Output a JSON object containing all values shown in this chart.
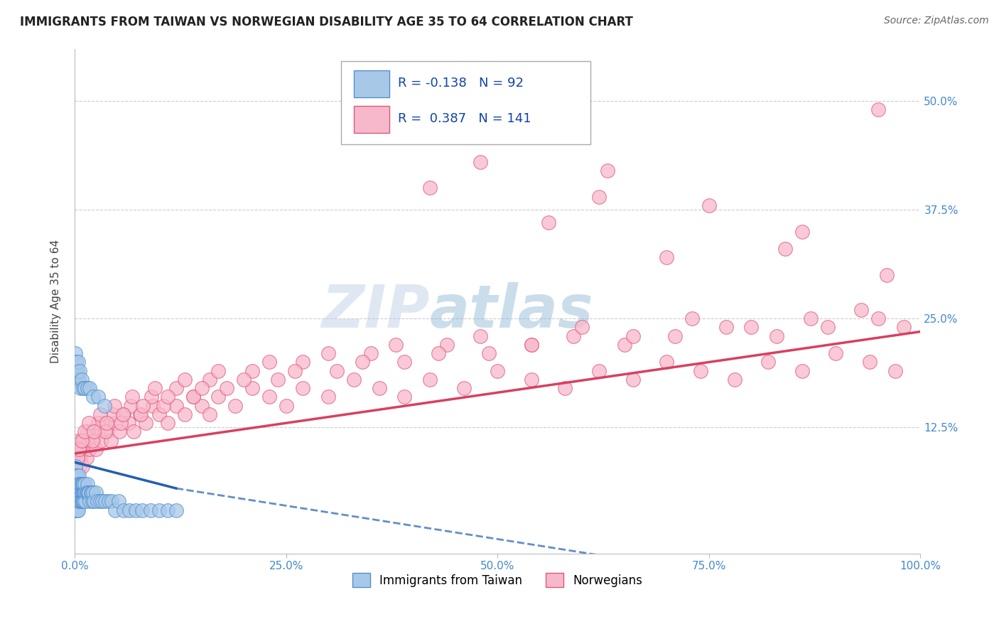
{
  "title": "IMMIGRANTS FROM TAIWAN VS NORWEGIAN DISABILITY AGE 35 TO 64 CORRELATION CHART",
  "source": "Source: ZipAtlas.com",
  "ylabel": "Disability Age 35 to 64",
  "xmin": 0.0,
  "xmax": 1.0,
  "ymin": -0.02,
  "ymax": 0.56,
  "xticks": [
    0.0,
    0.25,
    0.5,
    0.75,
    1.0
  ],
  "xticklabels": [
    "0.0%",
    "25.0%",
    "50.0%",
    "75.0%",
    "100.0%"
  ],
  "ytick_positions": [
    0.125,
    0.25,
    0.375,
    0.5
  ],
  "yticklabels": [
    "12.5%",
    "25.0%",
    "37.5%",
    "50.0%"
  ],
  "taiwan_color": "#a8c8e8",
  "taiwan_edge_color": "#5090d0",
  "norwegian_color": "#f8b8cc",
  "norwegian_edge_color": "#e05878",
  "taiwan_line_color": "#2060b0",
  "norwegian_line_color": "#d84060",
  "R_taiwan": -0.138,
  "N_taiwan": 92,
  "R_norwegian": 0.387,
  "N_norwegian": 141,
  "legend_label_taiwan": "Immigrants from Taiwan",
  "legend_label_norwegian": "Norwegians",
  "watermark_zip": "ZIP",
  "watermark_atlas": "atlas",
  "grid_color": "#cccccc",
  "background_color": "#ffffff",
  "taiwan_points_x": [
    0.001,
    0.001,
    0.001,
    0.001,
    0.001,
    0.001,
    0.001,
    0.002,
    0.002,
    0.002,
    0.002,
    0.002,
    0.002,
    0.003,
    0.003,
    0.003,
    0.003,
    0.003,
    0.004,
    0.004,
    0.004,
    0.004,
    0.005,
    0.005,
    0.005,
    0.005,
    0.006,
    0.006,
    0.006,
    0.007,
    0.007,
    0.007,
    0.008,
    0.008,
    0.008,
    0.009,
    0.009,
    0.009,
    0.01,
    0.01,
    0.01,
    0.011,
    0.011,
    0.012,
    0.012,
    0.013,
    0.013,
    0.014,
    0.015,
    0.015,
    0.016,
    0.017,
    0.018,
    0.019,
    0.02,
    0.021,
    0.022,
    0.023,
    0.025,
    0.027,
    0.03,
    0.033,
    0.036,
    0.04,
    0.044,
    0.048,
    0.052,
    0.058,
    0.065,
    0.072,
    0.08,
    0.09,
    0.1,
    0.11,
    0.12,
    0.001,
    0.001,
    0.002,
    0.002,
    0.003,
    0.004,
    0.005,
    0.006,
    0.007,
    0.008,
    0.01,
    0.012,
    0.015,
    0.018,
    0.022,
    0.028,
    0.035
  ],
  "taiwan_points_y": [
    0.04,
    0.05,
    0.06,
    0.07,
    0.08,
    0.03,
    0.04,
    0.05,
    0.06,
    0.07,
    0.04,
    0.03,
    0.05,
    0.06,
    0.04,
    0.07,
    0.05,
    0.03,
    0.06,
    0.05,
    0.04,
    0.03,
    0.07,
    0.06,
    0.05,
    0.04,
    0.05,
    0.06,
    0.04,
    0.05,
    0.06,
    0.04,
    0.05,
    0.06,
    0.04,
    0.05,
    0.06,
    0.04,
    0.05,
    0.06,
    0.04,
    0.05,
    0.04,
    0.05,
    0.06,
    0.05,
    0.04,
    0.05,
    0.06,
    0.05,
    0.05,
    0.05,
    0.04,
    0.05,
    0.05,
    0.04,
    0.05,
    0.04,
    0.05,
    0.04,
    0.04,
    0.04,
    0.04,
    0.04,
    0.04,
    0.03,
    0.04,
    0.03,
    0.03,
    0.03,
    0.03,
    0.03,
    0.03,
    0.03,
    0.03,
    0.19,
    0.21,
    0.2,
    0.18,
    0.19,
    0.2,
    0.18,
    0.19,
    0.17,
    0.18,
    0.17,
    0.17,
    0.17,
    0.17,
    0.16,
    0.16,
    0.15
  ],
  "norwegian_points_x": [
    0.001,
    0.002,
    0.003,
    0.004,
    0.005,
    0.006,
    0.007,
    0.008,
    0.009,
    0.01,
    0.012,
    0.014,
    0.016,
    0.018,
    0.02,
    0.022,
    0.025,
    0.028,
    0.031,
    0.035,
    0.039,
    0.043,
    0.048,
    0.053,
    0.058,
    0.064,
    0.07,
    0.077,
    0.084,
    0.092,
    0.1,
    0.11,
    0.12,
    0.13,
    0.14,
    0.15,
    0.16,
    0.17,
    0.19,
    0.21,
    0.23,
    0.25,
    0.27,
    0.3,
    0.33,
    0.36,
    0.39,
    0.42,
    0.46,
    0.5,
    0.54,
    0.58,
    0.62,
    0.66,
    0.7,
    0.74,
    0.78,
    0.82,
    0.86,
    0.9,
    0.94,
    0.97,
    0.003,
    0.006,
    0.01,
    0.015,
    0.021,
    0.028,
    0.036,
    0.045,
    0.055,
    0.066,
    0.078,
    0.091,
    0.105,
    0.12,
    0.14,
    0.16,
    0.18,
    0.21,
    0.24,
    0.27,
    0.31,
    0.35,
    0.39,
    0.44,
    0.49,
    0.54,
    0.59,
    0.65,
    0.71,
    0.77,
    0.83,
    0.89,
    0.95,
    0.001,
    0.003,
    0.005,
    0.008,
    0.012,
    0.017,
    0.023,
    0.03,
    0.038,
    0.047,
    0.057,
    0.068,
    0.081,
    0.095,
    0.11,
    0.13,
    0.15,
    0.17,
    0.2,
    0.23,
    0.26,
    0.3,
    0.34,
    0.38,
    0.43,
    0.48,
    0.54,
    0.6,
    0.66,
    0.73,
    0.8,
    0.87,
    0.93,
    0.98,
    0.52,
    0.63,
    0.75,
    0.86,
    0.95,
    0.42,
    0.56,
    0.7,
    0.84,
    0.96,
    0.48,
    0.62
  ],
  "norwegian_points_y": [
    0.08,
    0.1,
    0.09,
    0.11,
    0.1,
    0.08,
    0.09,
    0.1,
    0.08,
    0.11,
    0.1,
    0.09,
    0.11,
    0.1,
    0.12,
    0.11,
    0.1,
    0.12,
    0.11,
    0.13,
    0.12,
    0.11,
    0.13,
    0.12,
    0.14,
    0.13,
    0.12,
    0.14,
    0.13,
    0.15,
    0.14,
    0.13,
    0.15,
    0.14,
    0.16,
    0.15,
    0.14,
    0.16,
    0.15,
    0.17,
    0.16,
    0.15,
    0.17,
    0.16,
    0.18,
    0.17,
    0.16,
    0.18,
    0.17,
    0.19,
    0.18,
    0.17,
    0.19,
    0.18,
    0.2,
    0.19,
    0.18,
    0.2,
    0.19,
    0.21,
    0.2,
    0.19,
    0.09,
    0.1,
    0.11,
    0.12,
    0.11,
    0.13,
    0.12,
    0.14,
    0.13,
    0.15,
    0.14,
    0.16,
    0.15,
    0.17,
    0.16,
    0.18,
    0.17,
    0.19,
    0.18,
    0.2,
    0.19,
    0.21,
    0.2,
    0.22,
    0.21,
    0.22,
    0.23,
    0.22,
    0.23,
    0.24,
    0.23,
    0.24,
    0.25,
    0.08,
    0.09,
    0.1,
    0.11,
    0.12,
    0.13,
    0.12,
    0.14,
    0.13,
    0.15,
    0.14,
    0.16,
    0.15,
    0.17,
    0.16,
    0.18,
    0.17,
    0.19,
    0.18,
    0.2,
    0.19,
    0.21,
    0.2,
    0.22,
    0.21,
    0.23,
    0.22,
    0.24,
    0.23,
    0.25,
    0.24,
    0.25,
    0.26,
    0.24,
    0.46,
    0.42,
    0.38,
    0.35,
    0.49,
    0.4,
    0.36,
    0.32,
    0.33,
    0.3,
    0.43,
    0.39
  ]
}
